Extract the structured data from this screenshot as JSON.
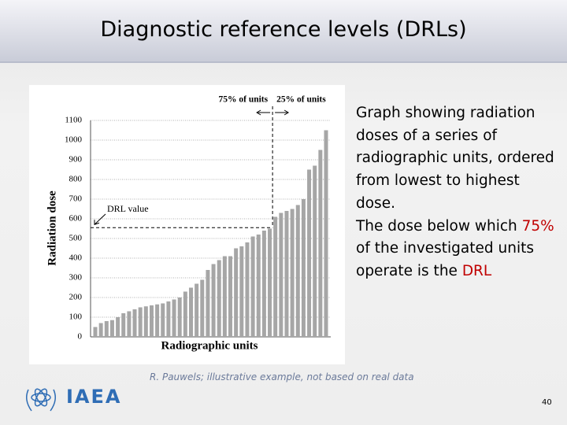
{
  "header": {
    "title": "Diagnostic reference levels (DRLs)"
  },
  "chart_data": {
    "type": "bar",
    "x_label": "Radiographic units",
    "y_label": "Radiation dose",
    "values": [
      50,
      70,
      80,
      85,
      100,
      120,
      130,
      140,
      150,
      155,
      160,
      165,
      170,
      180,
      190,
      200,
      230,
      250,
      270,
      290,
      340,
      370,
      390,
      410,
      410,
      450,
      460,
      480,
      510,
      520,
      540,
      550,
      610,
      630,
      640,
      650,
      670,
      700,
      850,
      870,
      950,
      1050
    ],
    "color": "#a6a6a6",
    "ylim": [
      0,
      1100
    ],
    "yticks": [
      0,
      100,
      200,
      300,
      400,
      500,
      600,
      700,
      800,
      900,
      1000,
      1100
    ],
    "grid": true,
    "drl": 555,
    "annotations": {
      "drl": "DRL value",
      "below": "75% of units",
      "above": "25% of units"
    }
  },
  "description": {
    "text": "Graph showing radiation doses of a series of radiographic units, ordered from lowest to highest dose.",
    "text2": "The dose below which ",
    "highlight": "75%",
    "text3": " of the investigated units operate is the ",
    "term": "DRL"
  },
  "caption": "R. Pauwels; illustrative example, not based on real data",
  "logo": "IAEA",
  "page_number": "40"
}
